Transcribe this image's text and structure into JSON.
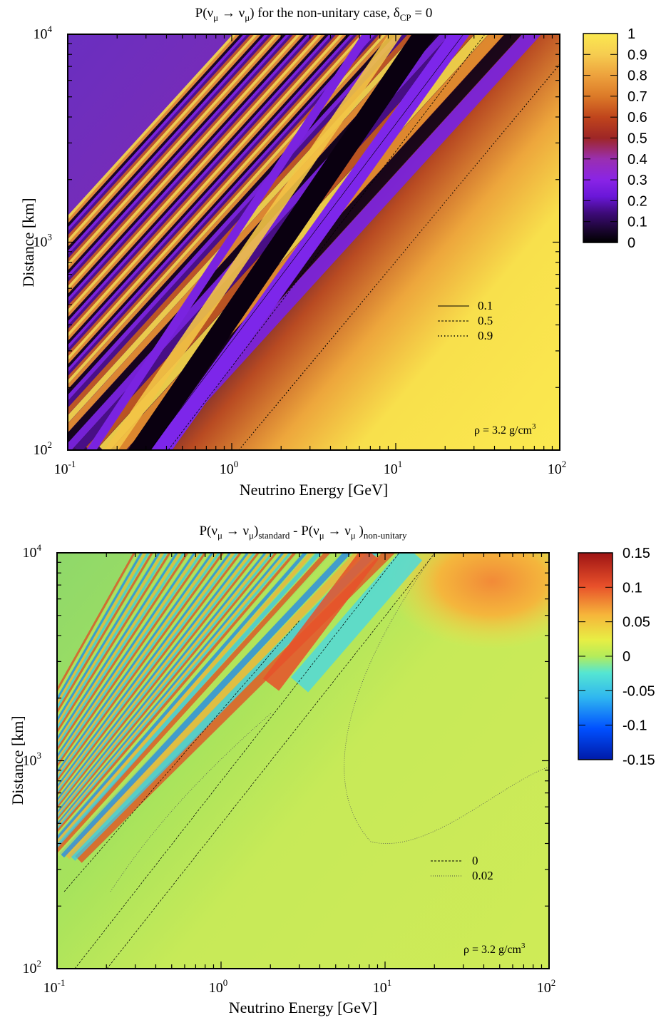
{
  "chart_data": [
    {
      "type": "heatmap",
      "title": {
        "base": "P(ν",
        "sub1": "μ",
        "mid": " → ν",
        "sub2": "μ",
        "tail": ") for the non-unitary case, δ",
        "sub3": "CP",
        "end": " = 0"
      },
      "xlabel": "Neutrino Energy [GeV]",
      "ylabel": "Distance [km]",
      "x_scale": "log",
      "y_scale": "log",
      "xlim": [
        0.1,
        100
      ],
      "ylim": [
        100,
        10000
      ],
      "x_ticks": [
        {
          "base": "10",
          "exp": "-1"
        },
        {
          "base": "10",
          "exp": "0"
        },
        {
          "base": "10",
          "exp": "1"
        },
        {
          "base": "10",
          "exp": "2"
        }
      ],
      "y_ticks": [
        {
          "base": "10",
          "exp": "2"
        },
        {
          "base": "10",
          "exp": "3"
        },
        {
          "base": "10",
          "exp": "4"
        }
      ],
      "colorbar": {
        "min": 0,
        "max": 1,
        "colormap": "inferno-like (black-purple-red-orange-yellow)",
        "ticks": [
          "1",
          "0.9",
          "0.8",
          "0.7",
          "0.6",
          "0.5",
          "0.4",
          "0.3",
          "0.2",
          "0.1",
          "0"
        ]
      },
      "contour_legend": [
        {
          "style": "solid",
          "label": "0.1"
        },
        {
          "style": "dashed",
          "label": "0.5"
        },
        {
          "style": "dotted",
          "label": "0.9"
        }
      ],
      "annotation": {
        "text": "ρ = 3.2 g/cm",
        "sup": "3"
      }
    },
    {
      "type": "heatmap",
      "title": {
        "base": "P(ν",
        "sub1": "μ",
        "mid": " → ν",
        "sub2": "μ",
        "tail1": ")",
        "sub3": "standard",
        "mid2": " - P(ν",
        "sub4": "μ",
        "mid3": " → ν",
        "sub5": "μ",
        "tail2": " )",
        "sub6": "non-unitary"
      },
      "xlabel": "Neutrino Energy [GeV]",
      "ylabel": "Distance [km]",
      "x_scale": "log",
      "y_scale": "log",
      "xlim": [
        0.1,
        100
      ],
      "ylim": [
        100,
        10000
      ],
      "x_ticks": [
        {
          "base": "10",
          "exp": "-1"
        },
        {
          "base": "10",
          "exp": "0"
        },
        {
          "base": "10",
          "exp": "1"
        },
        {
          "base": "10",
          "exp": "2"
        }
      ],
      "y_ticks": [
        {
          "base": "10",
          "exp": "2"
        },
        {
          "base": "10",
          "exp": "3"
        },
        {
          "base": "10",
          "exp": "4"
        }
      ],
      "colorbar": {
        "min": -0.15,
        "max": 0.15,
        "colormap": "jet-like (blue-cyan-green-yellow-red)",
        "ticks": [
          "0.15",
          "0.1",
          "0.05",
          "0",
          "-0.05",
          "-0.1",
          "-0.15"
        ]
      },
      "contour_legend": [
        {
          "style": "dashed",
          "label": "0"
        },
        {
          "style": "dotted",
          "label": "0.02"
        }
      ],
      "annotation": {
        "text": "ρ = 3.2 g/cm",
        "sup": "3"
      }
    }
  ]
}
